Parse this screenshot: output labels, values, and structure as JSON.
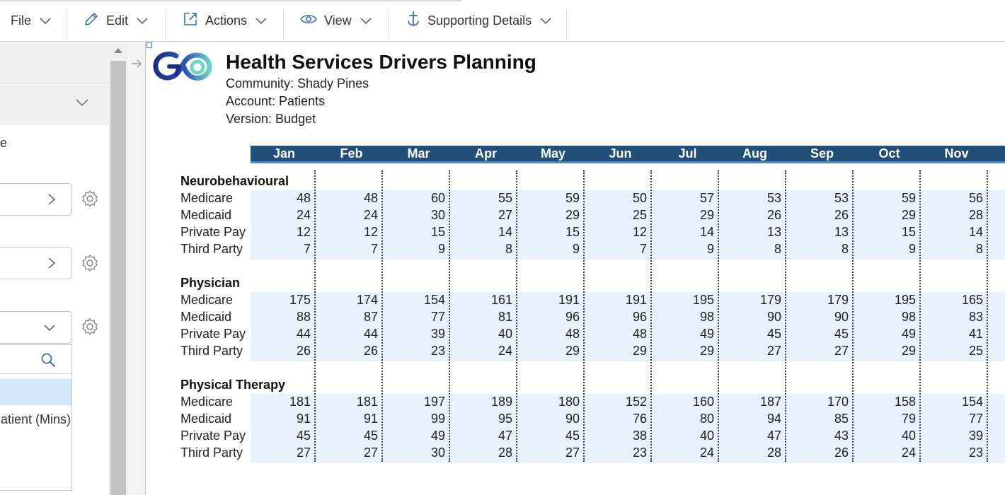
{
  "toolbar": {
    "items": [
      {
        "label": "File",
        "icon": "file-icon"
      },
      {
        "label": "Edit",
        "icon": "pencil-icon"
      },
      {
        "label": "Actions",
        "icon": "external-link-icon"
      },
      {
        "label": "View",
        "icon": "eye-icon"
      },
      {
        "label": "Supporting Details",
        "icon": "anchor-icon"
      }
    ]
  },
  "left_panel": {
    "clipped_label": "e",
    "dropdown_option": "atient (Mins)"
  },
  "report": {
    "title": "Health Services Drivers Planning",
    "meta": {
      "community": "Community: Shady Pines",
      "account": "Account: Patients",
      "version": "Version: Budget"
    },
    "months": [
      "Jan",
      "Feb",
      "Mar",
      "Apr",
      "May",
      "Jun",
      "Jul",
      "Aug",
      "Sep",
      "Oct",
      "Nov"
    ],
    "sections": [
      {
        "title": "Neurobehavioural",
        "rows": [
          {
            "label": "Medicare",
            "values": [
              "48",
              "48",
              "60",
              "55",
              "59",
              "50",
              "57",
              "53",
              "53",
              "59",
              "56"
            ]
          },
          {
            "label": "Medicaid",
            "values": [
              "24",
              "24",
              "30",
              "27",
              "29",
              "25",
              "29",
              "26",
              "26",
              "29",
              "28"
            ]
          },
          {
            "label": "Private Pay",
            "values": [
              "12",
              "12",
              "15",
              "14",
              "15",
              "12",
              "14",
              "13",
              "13",
              "15",
              "14"
            ]
          },
          {
            "label": "Third Party",
            "values": [
              "7",
              "7",
              "9",
              "8",
              "9",
              "7",
              "9",
              "8",
              "8",
              "9",
              "8"
            ]
          }
        ]
      },
      {
        "title": "Physician",
        "rows": [
          {
            "label": "Medicare",
            "values": [
              "175",
              "174",
              "154",
              "161",
              "191",
              "191",
              "195",
              "179",
              "179",
              "195",
              "165"
            ]
          },
          {
            "label": "Medicaid",
            "values": [
              "88",
              "87",
              "77",
              "81",
              "96",
              "96",
              "98",
              "90",
              "90",
              "98",
              "83"
            ]
          },
          {
            "label": "Private Pay",
            "values": [
              "44",
              "44",
              "39",
              "40",
              "48",
              "48",
              "49",
              "45",
              "45",
              "49",
              "41"
            ]
          },
          {
            "label": "Third Party",
            "values": [
              "26",
              "26",
              "23",
              "24",
              "29",
              "29",
              "29",
              "27",
              "27",
              "29",
              "25"
            ]
          }
        ]
      },
      {
        "title": "Physical Therapy",
        "rows": [
          {
            "label": "Medicare",
            "values": [
              "181",
              "181",
              "197",
              "189",
              "180",
              "152",
              "160",
              "187",
              "170",
              "158",
              "154"
            ]
          },
          {
            "label": "Medicaid",
            "values": [
              "91",
              "91",
              "99",
              "95",
              "90",
              "76",
              "80",
              "94",
              "85",
              "79",
              "77"
            ]
          },
          {
            "label": "Private Pay",
            "values": [
              "45",
              "45",
              "49",
              "47",
              "45",
              "38",
              "40",
              "47",
              "43",
              "40",
              "39"
            ]
          },
          {
            "label": "Third Party",
            "values": [
              "27",
              "27",
              "30",
              "28",
              "27",
              "23",
              "24",
              "28",
              "26",
              "24",
              "23"
            ]
          }
        ]
      }
    ]
  },
  "colors": {
    "header_bar": "#1f4e79",
    "header_underline": "#4a86c5",
    "data_band": "#e6f1fb",
    "selection": "#d3e6fa"
  }
}
